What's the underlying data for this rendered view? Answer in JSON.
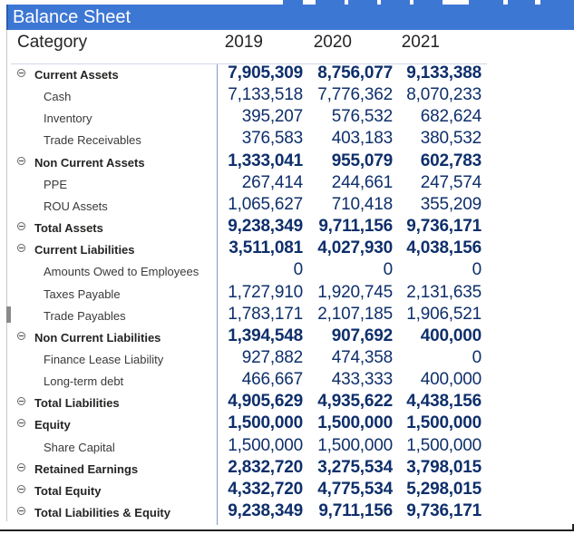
{
  "title": "Balance Sheet",
  "headers": {
    "category": "Category",
    "years": [
      "2019",
      "2020",
      "2021"
    ]
  },
  "colors": {
    "accent": "#3d77d4",
    "value_text": "#0e2f6b"
  },
  "rows": [
    {
      "label": "Current Assets",
      "level": 0,
      "values": [
        "7,905,309",
        "8,756,077",
        "9,133,388"
      ]
    },
    {
      "label": "Cash",
      "level": 1,
      "values": [
        "7,133,518",
        "7,776,362",
        "8,070,233"
      ]
    },
    {
      "label": "Inventory",
      "level": 1,
      "values": [
        "395,207",
        "576,532",
        "682,624"
      ]
    },
    {
      "label": "Trade Receivables",
      "level": 1,
      "values": [
        "376,583",
        "403,183",
        "380,532"
      ]
    },
    {
      "label": "Non Current Assets",
      "level": 0,
      "values": [
        "1,333,041",
        "955,079",
        "602,783"
      ]
    },
    {
      "label": "PPE",
      "level": 1,
      "values": [
        "267,414",
        "244,661",
        "247,574"
      ]
    },
    {
      "label": "ROU Assets",
      "level": 1,
      "values": [
        "1,065,627",
        "710,418",
        "355,209"
      ]
    },
    {
      "label": "Total Assets",
      "level": 0,
      "values": [
        "9,238,349",
        "9,711,156",
        "9,736,171"
      ]
    },
    {
      "label": "Current Liabilities",
      "level": 0,
      "values": [
        "3,511,081",
        "4,027,930",
        "4,038,156"
      ]
    },
    {
      "label": "Amounts Owed to Employees",
      "level": 1,
      "values": [
        "0",
        "0",
        "0"
      ]
    },
    {
      "label": "Taxes Payable",
      "level": 1,
      "values": [
        "1,727,910",
        "1,920,745",
        "2,131,635"
      ]
    },
    {
      "label": "Trade Payables",
      "level": 1,
      "values": [
        "1,783,171",
        "2,107,185",
        "1,906,521"
      ]
    },
    {
      "label": "Non Current Liabilities",
      "level": 0,
      "values": [
        "1,394,548",
        "907,692",
        "400,000"
      ]
    },
    {
      "label": "Finance Lease Liability",
      "level": 1,
      "values": [
        "927,882",
        "474,358",
        "0"
      ]
    },
    {
      "label": "Long-term debt",
      "level": 1,
      "values": [
        "466,667",
        "433,333",
        "400,000"
      ]
    },
    {
      "label": "Total Liabilities",
      "level": 0,
      "values": [
        "4,905,629",
        "4,935,622",
        "4,438,156"
      ]
    },
    {
      "label": "Equity",
      "level": 0,
      "values": [
        "1,500,000",
        "1,500,000",
        "1,500,000"
      ]
    },
    {
      "label": "Share Capital",
      "level": 1,
      "values": [
        "1,500,000",
        "1,500,000",
        "1,500,000"
      ]
    },
    {
      "label": "Retained Earnings",
      "level": 0,
      "values": [
        "2,832,720",
        "3,275,534",
        "3,798,015"
      ]
    },
    {
      "label": "Total Equity",
      "level": 0,
      "values": [
        "4,332,720",
        "4,775,534",
        "5,298,015"
      ]
    },
    {
      "label": "Total Liabilities & Equity",
      "level": 0,
      "values": [
        "9,238,349",
        "9,711,156",
        "9,736,171"
      ]
    }
  ]
}
